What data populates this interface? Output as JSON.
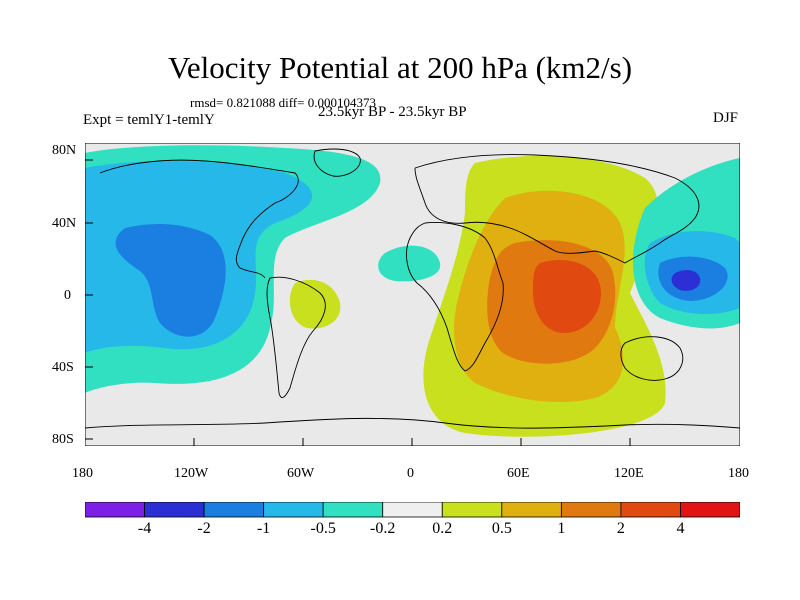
{
  "title": "Velocity Potential at 200 hPa (km2/s)",
  "stats": "rmsd= 0.821088  diff= 0.000104373",
  "experiment": "Expt = temlY1-temlY",
  "period": "23.5kyr BP - 23.5kyr BP",
  "season": "DJF",
  "lat_labels": [
    "80N",
    "40N",
    "0",
    "40S",
    "80S"
  ],
  "lon_labels": [
    "180",
    "120W",
    "60W",
    "0",
    "60E",
    "120E",
    "180"
  ],
  "legend": {
    "colors": [
      "#7d1fe6",
      "#2c2fd3",
      "#1a7fe0",
      "#27b8ea",
      "#30e0c0",
      "#efefef",
      "#c8e01e",
      "#e0b010",
      "#e07a10",
      "#e04a10",
      "#e01414"
    ],
    "labels": [
      "-4",
      "-2",
      "-1",
      "-0.5",
      "-0.2",
      "0.2",
      "0.5",
      "1",
      "2",
      "4"
    ]
  }
}
